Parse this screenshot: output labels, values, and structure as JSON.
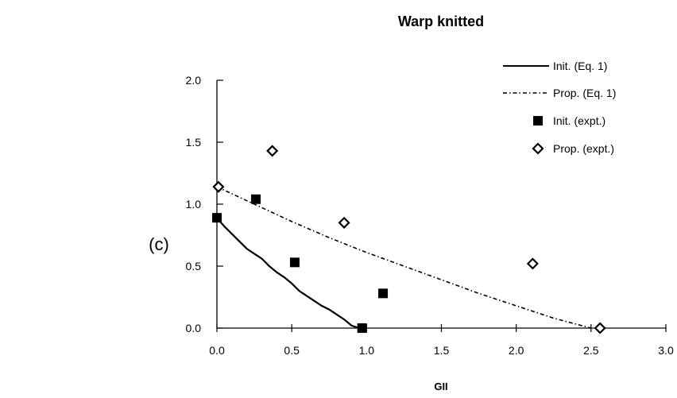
{
  "panel_label": "(c)",
  "chart_data": {
    "type": "scatter",
    "title": "Warp knitted",
    "xlabel": "GII",
    "ylabel": "",
    "xlim": [
      0.0,
      3.0
    ],
    "ylim": [
      0.0,
      2.0
    ],
    "x_ticks": [
      "0.0",
      "0.5",
      "1.0",
      "1.5",
      "2.0",
      "2.5",
      "3.0"
    ],
    "y_ticks": [
      "0.0",
      "0.5",
      "1.0",
      "1.5",
      "2.0"
    ],
    "grid": false,
    "legend_position": "top-right",
    "series": [
      {
        "name": "Init. (Eq. 1)",
        "kind": "line",
        "style": "solid",
        "color": "#000000",
        "x": [
          0.0,
          0.05,
          0.1,
          0.15,
          0.2,
          0.25,
          0.3,
          0.35,
          0.4,
          0.45,
          0.5,
          0.55,
          0.6,
          0.65,
          0.7,
          0.75,
          0.8,
          0.85,
          0.9,
          0.95
        ],
        "y": [
          0.89,
          0.82,
          0.76,
          0.7,
          0.64,
          0.6,
          0.56,
          0.5,
          0.45,
          0.41,
          0.36,
          0.3,
          0.26,
          0.22,
          0.18,
          0.15,
          0.11,
          0.07,
          0.02,
          0.0
        ]
      },
      {
        "name": "Prop. (Eq. 1)",
        "kind": "line",
        "style": "dash-dot",
        "color": "#000000",
        "x": [
          0.0,
          0.25,
          0.5,
          0.75,
          1.0,
          1.25,
          1.5,
          1.75,
          2.0,
          2.25,
          2.5
        ],
        "y": [
          1.14,
          1.0,
          0.86,
          0.73,
          0.61,
          0.5,
          0.39,
          0.28,
          0.18,
          0.08,
          0.0
        ]
      },
      {
        "name": "Init. (expt.)",
        "kind": "marker",
        "marker": "filled-square",
        "color": "#000000",
        "x": [
          0.0,
          0.26,
          0.52,
          0.97,
          1.11
        ],
        "y": [
          0.89,
          1.04,
          0.53,
          0.0,
          0.28
        ]
      },
      {
        "name": "Prop. (expt.)",
        "kind": "marker",
        "marker": "open-diamond",
        "color": "#000000",
        "x": [
          0.01,
          0.37,
          0.85,
          2.11,
          2.56
        ],
        "y": [
          1.14,
          1.43,
          0.85,
          0.52,
          0.0
        ]
      }
    ]
  }
}
